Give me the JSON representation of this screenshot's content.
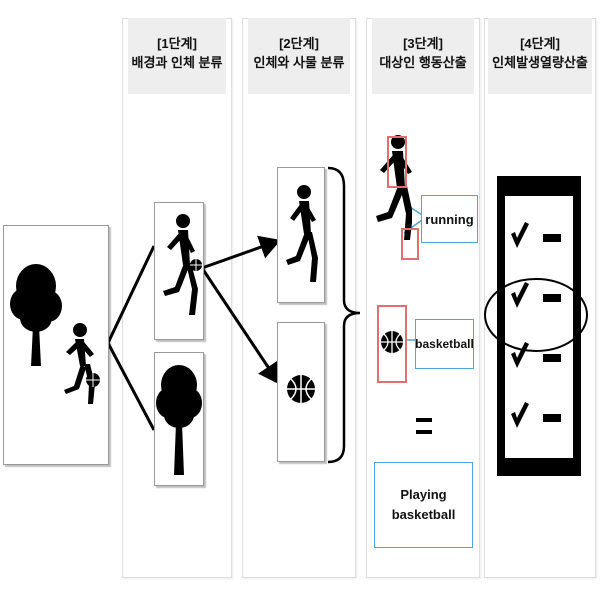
{
  "stages": [
    {
      "step": "[1단계]",
      "title": "배경과 인체 분류"
    },
    {
      "step": "[2단계]",
      "title": "인체와 사물 분류"
    },
    {
      "step": "[3단계]",
      "title": "대상인 행동산출"
    },
    {
      "step": "[4단계]",
      "title": "인체발생열량산출"
    }
  ],
  "labels": {
    "running": "running",
    "basketball": "basketball",
    "result": "Playing basketball"
  },
  "colors": {
    "label_border": "#4ea6dc",
    "highlight_red": "#e07070",
    "header_bg": "#eeeeee"
  },
  "icons": [
    "tree-icon",
    "runner-icon",
    "basketball-icon",
    "checklist-icon",
    "check-icon"
  ]
}
